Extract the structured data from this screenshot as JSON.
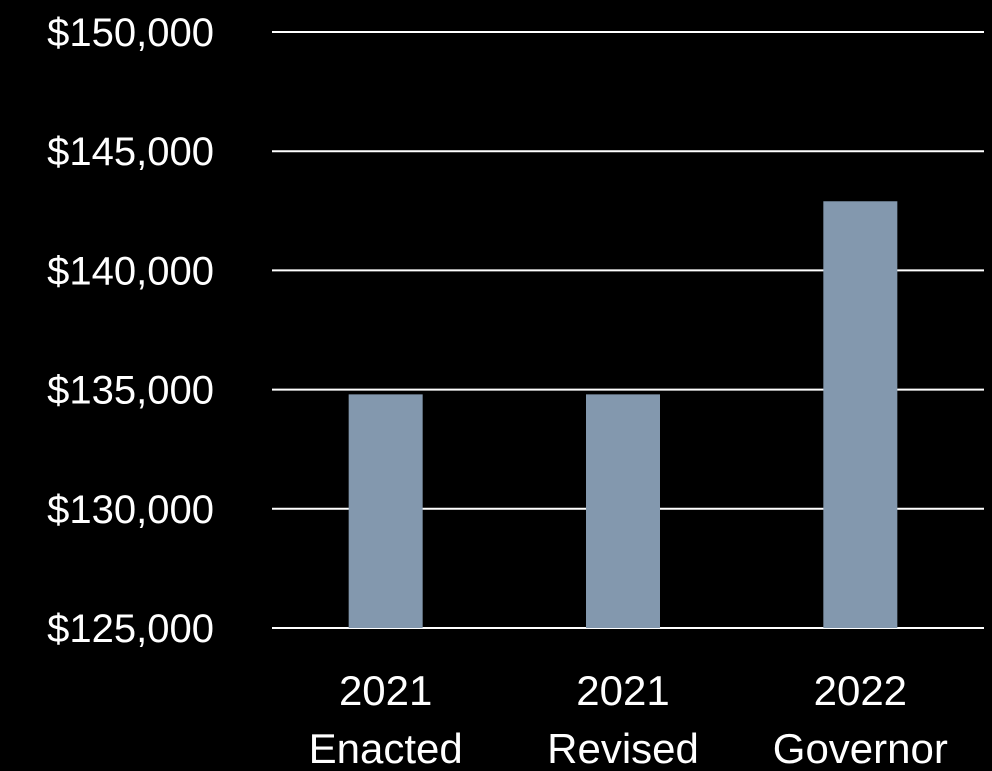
{
  "chart_data": {
    "type": "bar",
    "categories": [
      [
        "2021",
        "Enacted"
      ],
      [
        "2021",
        "Revised"
      ],
      [
        "2022",
        "Governor"
      ]
    ],
    "values": [
      134800,
      134800,
      142900
    ],
    "ylim": [
      125000,
      150000
    ],
    "yticks": [
      150000,
      145000,
      140000,
      135000,
      130000,
      125000
    ],
    "ytick_labels": [
      "$150,000",
      "$145,000",
      "$140,000",
      "$135,000",
      "$130,000",
      "$125,000"
    ],
    "grid": true,
    "legend": "none",
    "colors": {
      "background": "#000000",
      "bar": "#8398ae",
      "grid": "#ffffff",
      "text": "#ffffff"
    }
  }
}
